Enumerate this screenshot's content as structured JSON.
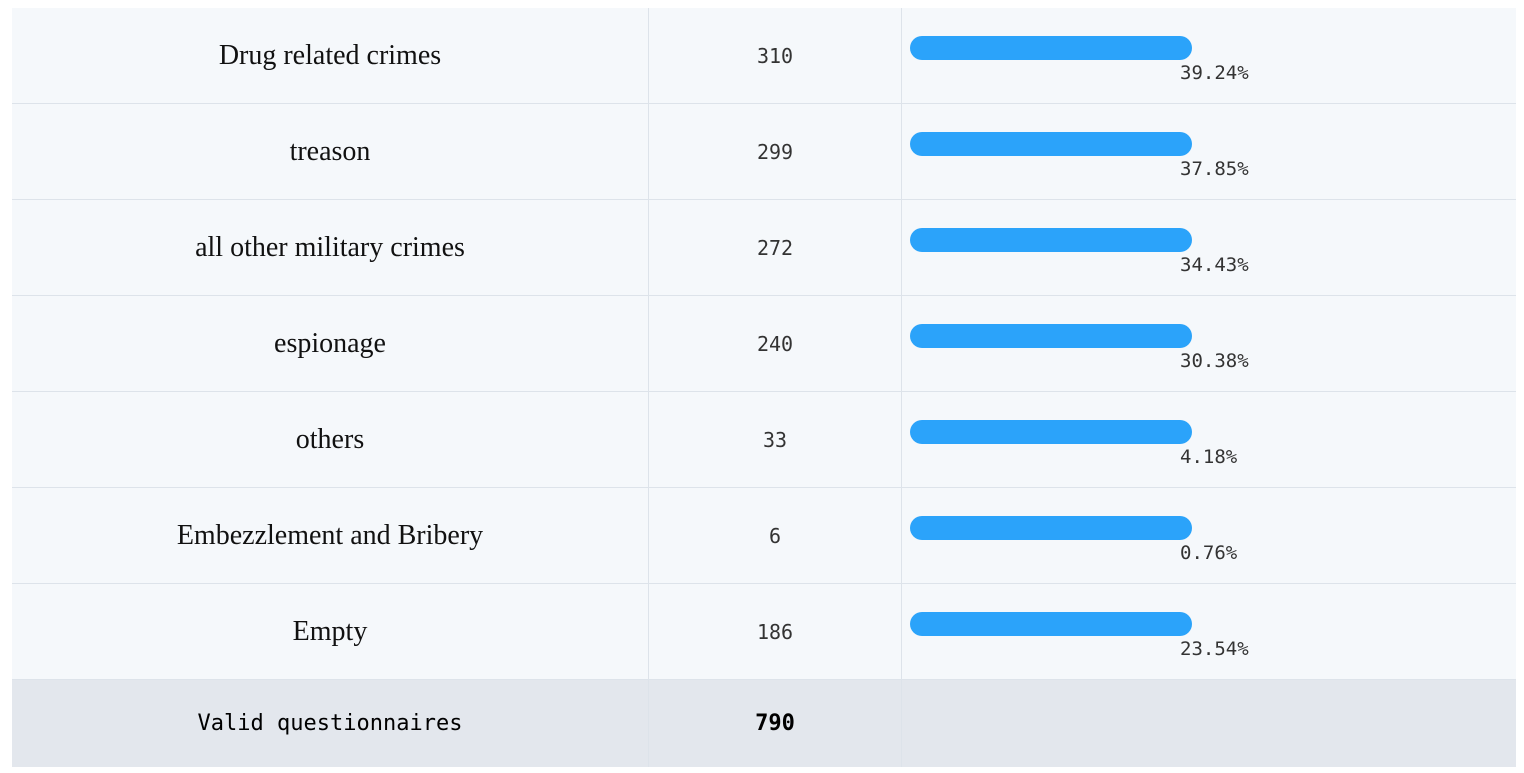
{
  "chart_data": {
    "type": "table",
    "rows": [
      {
        "label": "Drug related crimes",
        "count": "310",
        "percent": "39.24%",
        "fraction": 0.3924
      },
      {
        "label": "treason",
        "count": "299",
        "percent": "37.85%",
        "fraction": 0.3785
      },
      {
        "label": "all other military crimes",
        "count": "272",
        "percent": "34.43%",
        "fraction": 0.3443
      },
      {
        "label": "espionage",
        "count": "240",
        "percent": "30.38%",
        "fraction": 0.3038
      },
      {
        "label": "others",
        "count": "33",
        "percent": "4.18%",
        "fraction": 0.0418
      },
      {
        "label": "Embezzlement and Bribery",
        "count": "6",
        "percent": "0.76%",
        "fraction": 0.0076
      },
      {
        "label": "Empty",
        "count": "186",
        "percent": "23.54%",
        "fraction": 0.2354
      }
    ],
    "total": {
      "label": "Valid questionnaires",
      "count": "790"
    },
    "bar_color": "#2ba3fa"
  }
}
